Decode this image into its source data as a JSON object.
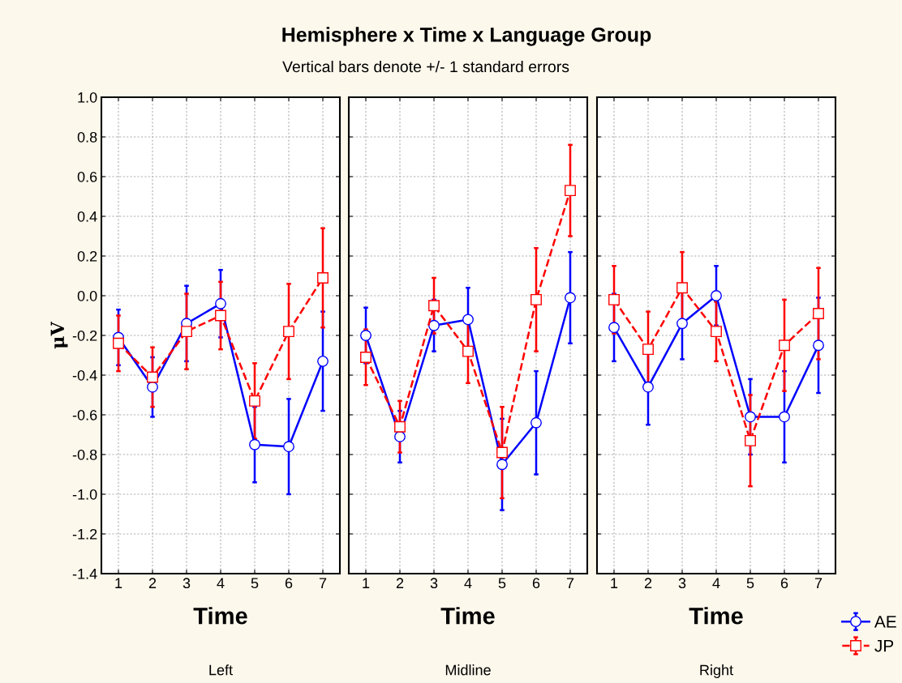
{
  "chart_data": [
    {
      "type": "line",
      "title": "Hemisphere x Time x Language Group",
      "subtitle": "Vertical bars denote +/- 1 standard errors",
      "xlabel": "Time",
      "ylabel": "μV",
      "annotations": [
        "Left"
      ],
      "x": [
        1,
        2,
        3,
        4,
        5,
        6,
        7
      ],
      "xlim": [
        0.5,
        7.5
      ],
      "xticks": [
        1,
        2,
        3,
        4,
        5,
        6,
        7
      ],
      "ylim": [
        -1.4,
        1.0
      ],
      "yticks": [
        -1.4,
        -1.2,
        {
          "value": -1,
          "label": "-1.0"
        },
        -0.8,
        -0.6,
        -0.4,
        -0.2,
        {
          "value": 0,
          "label": "0.0"
        },
        0.2,
        0.4,
        0.6,
        0.8,
        {
          "value": 1,
          "label": "1.0"
        }
      ],
      "grid": true,
      "legend": "bottom right",
      "series": [
        {
          "name": "AE",
          "color": "#0000ff",
          "marker": "circle",
          "line_style": "solid",
          "values": [
            -0.21,
            -0.46,
            -0.14,
            -0.04,
            -0.75,
            -0.76,
            -0.33
          ],
          "errors": [
            0.14,
            0.15,
            0.19,
            0.17,
            0.19,
            0.24,
            0.25
          ]
        },
        {
          "name": "JP",
          "color": "#ff0000",
          "marker": "square",
          "line_style": "dashed",
          "values": [
            -0.24,
            -0.41,
            -0.18,
            -0.1,
            -0.53,
            -0.18,
            0.09
          ],
          "errors": [
            0.14,
            0.15,
            0.19,
            0.17,
            0.19,
            0.24,
            0.25
          ]
        }
      ]
    },
    {
      "type": "line",
      "xlabel": "Time",
      "annotations": [
        "Midline"
      ],
      "x": [
        1,
        2,
        3,
        4,
        5,
        6,
        7
      ],
      "xlim": [
        0.5,
        7.5
      ],
      "xticks": [
        1,
        2,
        3,
        4,
        5,
        6,
        7
      ],
      "ylim": [
        -1.4,
        1.0
      ],
      "yticks": [
        -1.4,
        -1.2,
        -1.0,
        -0.8,
        -0.6,
        -0.4,
        -0.2,
        0.0,
        0.2,
        0.4,
        0.6,
        0.8,
        1.0
      ],
      "grid": true,
      "tick_labels": "x",
      "series": [
        {
          "color": "#0000ff",
          "marker": "circle",
          "line_style": "solid",
          "values": [
            -0.2,
            -0.71,
            -0.15,
            -0.12,
            -0.85,
            -0.64,
            -0.01
          ],
          "errors": [
            0.14,
            0.13,
            0.13,
            0.16,
            0.23,
            0.26,
            0.23
          ]
        },
        {
          "color": "#ff0000",
          "marker": "square",
          "line_style": "dashed",
          "values": [
            -0.31,
            -0.66,
            -0.05,
            -0.28,
            -0.79,
            -0.02,
            0.53
          ],
          "errors": [
            0.14,
            0.13,
            0.14,
            0.16,
            0.23,
            0.26,
            0.23
          ]
        }
      ]
    },
    {
      "type": "line",
      "xlabel": "Time",
      "annotations": [
        "Right"
      ],
      "x": [
        1,
        2,
        3,
        4,
        5,
        6,
        7
      ],
      "xlim": [
        0.5,
        7.5
      ],
      "xticks": [
        1,
        2,
        3,
        4,
        5,
        6,
        7
      ],
      "ylim": [
        -1.4,
        1.0
      ],
      "yticks": [
        -1.4,
        -1.2,
        -1.0,
        -0.8,
        -0.6,
        -0.4,
        -0.2,
        0.0,
        0.2,
        0.4,
        0.6,
        0.8,
        1.0
      ],
      "grid": true,
      "tick_labels": "x",
      "series": [
        {
          "color": "#0000ff",
          "marker": "circle",
          "line_style": "solid",
          "values": [
            -0.16,
            -0.46,
            -0.14,
            0.0,
            -0.61,
            -0.61,
            -0.25
          ],
          "errors": [
            0.17,
            0.19,
            0.18,
            0.15,
            0.19,
            0.23,
            0.24
          ]
        },
        {
          "color": "#ff0000",
          "marker": "square",
          "line_style": "dashed",
          "values": [
            -0.02,
            -0.27,
            0.04,
            -0.18,
            -0.73,
            -0.25,
            -0.09
          ],
          "errors": [
            0.17,
            0.19,
            0.18,
            0.15,
            0.23,
            0.23,
            0.23
          ]
        }
      ]
    }
  ]
}
